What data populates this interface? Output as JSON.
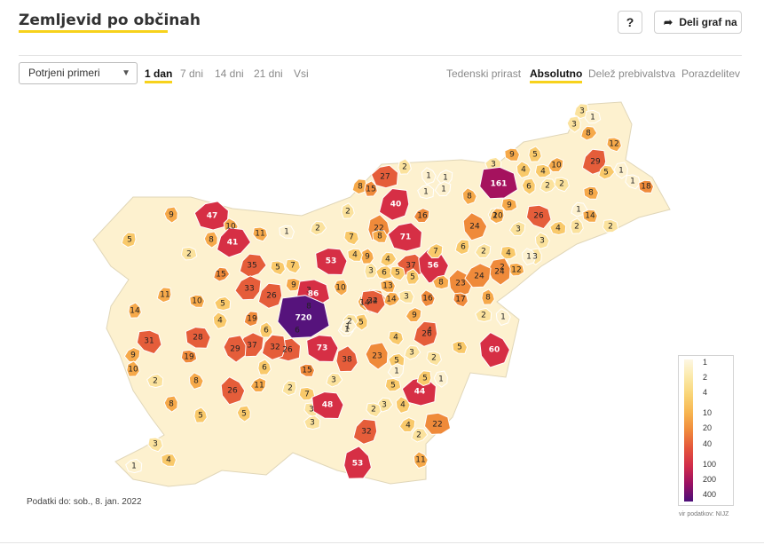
{
  "header": {
    "title": "Zemljevid po občinah",
    "help_label": "?",
    "share_label": "Deli graf na"
  },
  "controls": {
    "metric_select": {
      "value": "Potrjeni primeri"
    },
    "period_tabs": [
      {
        "label": "1 dan",
        "active": true
      },
      {
        "label": "7 dni",
        "active": false
      },
      {
        "label": "14 dni",
        "active": false
      },
      {
        "label": "21 dni",
        "active": false
      },
      {
        "label": "Vsi",
        "active": false
      }
    ],
    "mode_tabs": [
      {
        "label": "Tedenski prirast",
        "active": false
      },
      {
        "label": "Absolutno",
        "active": true
      },
      {
        "label": "Delež prebivalstva",
        "active": false
      },
      {
        "label": "Porazdelitev",
        "active": false
      }
    ]
  },
  "map": {
    "region": "Slovenia municipalities",
    "municipality_values": [
      "3",
      "1",
      "3",
      "8",
      "12",
      "9",
      "5",
      "3",
      "4",
      "10",
      "29",
      "4",
      "1",
      "5",
      "1",
      "18",
      "2",
      "27",
      "1",
      "1",
      "8",
      "161",
      "6",
      "2",
      "2",
      "8",
      "15",
      "1",
      "8",
      "1",
      "40",
      "9",
      "2",
      "1",
      "26",
      "14",
      "2",
      "47",
      "10",
      "16",
      "10",
      "2",
      "9",
      "41",
      "11",
      "1",
      "22",
      "71",
      "24",
      "3",
      "5",
      "2",
      "8",
      "2",
      "7",
      "8",
      "2",
      "4",
      "3",
      "2",
      "6",
      "4",
      "3",
      "35",
      "5",
      "53",
      "9",
      "37",
      "56",
      "7",
      "2",
      "12",
      "24",
      "15",
      "7",
      "4",
      "3",
      "6",
      "1",
      "33",
      "26",
      "9",
      "3",
      "4",
      "5",
      "13",
      "5",
      "8",
      "23",
      "24",
      "11",
      "86",
      "10",
      "22",
      "17",
      "10",
      "14",
      "5",
      "16",
      "9",
      "8",
      "6",
      "14",
      "14",
      "34",
      "3",
      "8",
      "2",
      "1",
      "1",
      "19",
      "720",
      "5",
      "2",
      "31",
      "28",
      "6",
      "26",
      "4",
      "37",
      "32",
      "4",
      "29",
      "1",
      "4",
      "73",
      "38",
      "5",
      "60",
      "9",
      "26",
      "19",
      "23",
      "3",
      "2",
      "5",
      "10",
      "2",
      "8",
      "11",
      "2",
      "7",
      "1",
      "3",
      "3",
      "15",
      "6",
      "44",
      "26",
      "1",
      "5",
      "5",
      "8",
      "3",
      "2",
      "48",
      "5",
      "3",
      "4",
      "4",
      "32",
      "22",
      "5",
      "2",
      "3",
      "4",
      "53",
      "1",
      "11",
      "10"
    ],
    "colors": {
      "very_low": "#fdf1cf",
      "low": "#fbe29d",
      "mid_low": "#f9c96a",
      "mid": "#f6a94a",
      "mid_high": "#ef8a3a",
      "high": "#e55d3a",
      "very_high": "#d62f45",
      "extreme": "#a5125e",
      "max": "#56137c",
      "border": "#ffffff"
    }
  },
  "legend": {
    "stops": [
      "1",
      "2",
      "4",
      "10",
      "20",
      "40",
      "100",
      "200",
      "400"
    ],
    "gradient": [
      "#fdf7e3",
      "#fbe9a8",
      "#f9d475",
      "#f7b550",
      "#f08a3c",
      "#e4553c",
      "#d12c4a",
      "#9a1063",
      "#4b0f78"
    ]
  },
  "footer": {
    "date_text": "Podatki do: sob., 8. jan. 2022",
    "source_text": "vir podatkov: NIJZ"
  }
}
